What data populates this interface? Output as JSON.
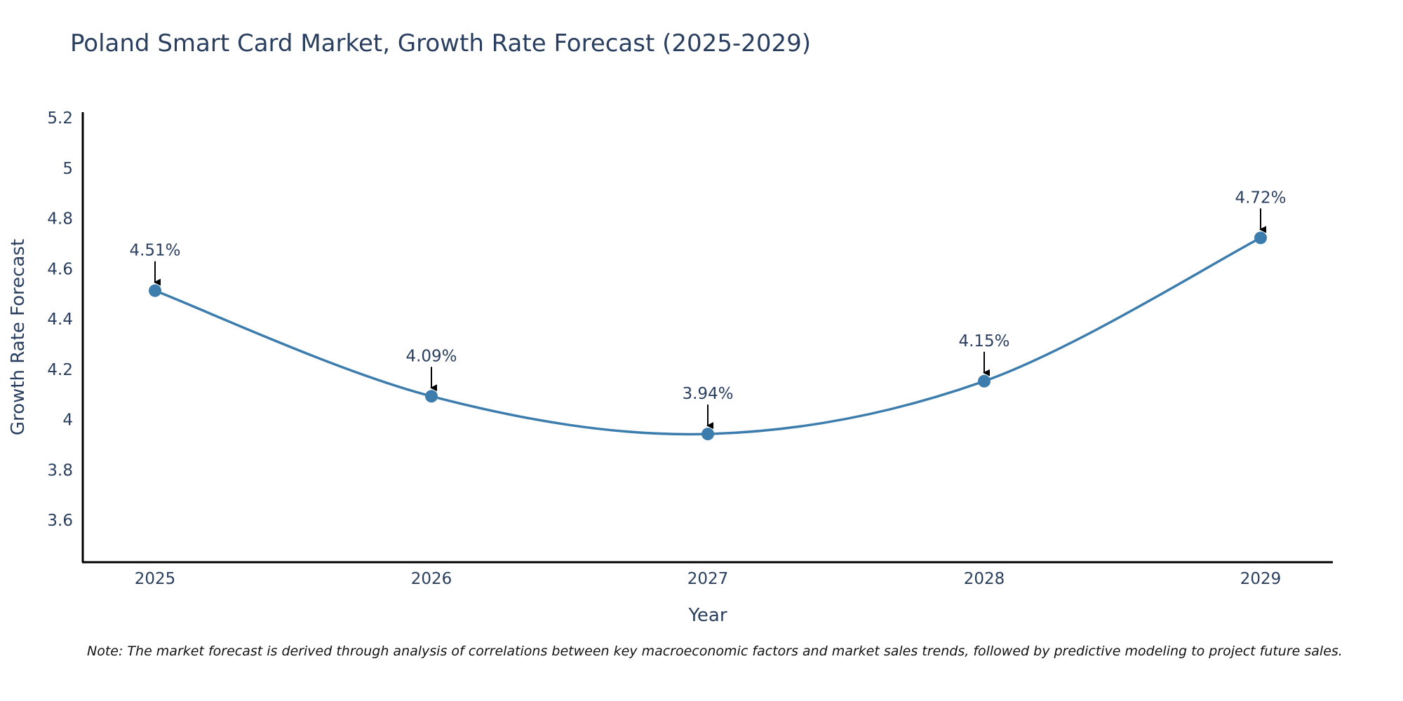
{
  "chart_data": {
    "type": "line",
    "title": "Poland Smart Card Market, Growth Rate Forecast (2025-2029)",
    "xlabel": "Year",
    "ylabel": "Growth Rate Forecast",
    "categories": [
      "2025",
      "2026",
      "2027",
      "2028",
      "2029"
    ],
    "values": [
      4.51,
      4.09,
      3.94,
      4.15,
      4.72
    ],
    "data_labels": [
      "4.51%",
      "4.09%",
      "3.94%",
      "4.15%",
      "4.72%"
    ],
    "ylim": [
      3.43,
      5.22
    ],
    "yticks": [
      3.6,
      3.8,
      4,
      4.2,
      4.4,
      4.6,
      4.8,
      5,
      5.2
    ],
    "ytick_labels": [
      "3.6",
      "3.8",
      "4",
      "4.2",
      "4.4",
      "4.6",
      "4.8",
      "5",
      "5.2"
    ],
    "grid": false,
    "line_shape": "spline",
    "series_color": "#3d7dad",
    "annotation_arrow_color": "#000000",
    "note": "Note: The market forecast is derived through analysis of correlations between key macroeconomic factors and market sales trends, followed by predictive modeling to project future sales."
  }
}
